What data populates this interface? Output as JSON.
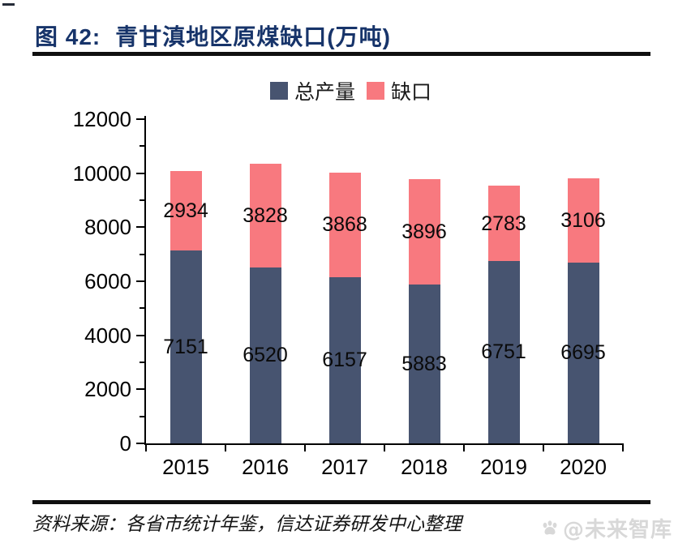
{
  "figure": {
    "label": "图 42:",
    "title": "青甘滇地区原煤缺口(万吨)"
  },
  "chart_data": {
    "type": "bar",
    "stacked": true,
    "title": "青甘滇地区原煤缺口(万吨)",
    "unit": "万吨",
    "categories": [
      "2015",
      "2016",
      "2017",
      "2018",
      "2019",
      "2020"
    ],
    "series": [
      {
        "name": "总产量",
        "color": "#475470",
        "values": [
          7151,
          6520,
          6157,
          5883,
          6751,
          6695
        ]
      },
      {
        "name": "缺口",
        "color": "#F8797F",
        "values": [
          2934,
          3828,
          3868,
          3896,
          2783,
          3106
        ]
      }
    ],
    "totals": [
      10085,
      10348,
      10025,
      9779,
      9534,
      9801
    ],
    "ylim": [
      0,
      12000
    ],
    "yticks": [
      0,
      2000,
      4000,
      6000,
      8000,
      10000,
      12000
    ],
    "minor_ytick_interval": 1000,
    "legend_position": "top-center",
    "grid": false,
    "data_labels": true
  },
  "footer": {
    "source": "资料来源：各省市统计年鉴，信达证券研发中心整理",
    "watermark": "@未来智库"
  },
  "colors": {
    "title": "#17346A",
    "bar_primary": "#475470",
    "bar_secondary": "#F8797F",
    "axis": "#000000",
    "watermark": "#D8D8D8"
  }
}
